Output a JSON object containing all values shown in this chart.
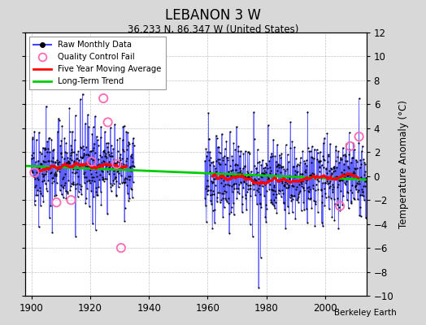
{
  "title": "LEBANON 3 W",
  "subtitle": "36.233 N, 86.347 W (United States)",
  "ylabel": "Temperature Anomaly (°C)",
  "credit": "Berkeley Earth",
  "ylim": [
    -10,
    12
  ],
  "yticks": [
    -10,
    -8,
    -6,
    -4,
    -2,
    0,
    2,
    4,
    6,
    8,
    10,
    12
  ],
  "xlim": [
    1898,
    2014
  ],
  "xticks": [
    1900,
    1920,
    1940,
    1960,
    1980,
    2000
  ],
  "seg1_start": 1900,
  "seg1_end": 1934,
  "seg2_start": 1959,
  "seg2_end": 2013,
  "trend_x": [
    1898,
    2014
  ],
  "trend_y": [
    0.85,
    -0.3
  ],
  "raw_color": "#4444FF",
  "ma_color": "#FF0000",
  "trend_color": "#00CC00",
  "qc_color": "#FF69B4",
  "bg_color": "#D8D8D8",
  "plot_bg_color": "#FFFFFF",
  "seg1_mean": 0.7,
  "seg1_std": 1.6,
  "seg2_mean": -0.2,
  "seg2_std": 1.5,
  "seed1": 42,
  "seed2": 123
}
